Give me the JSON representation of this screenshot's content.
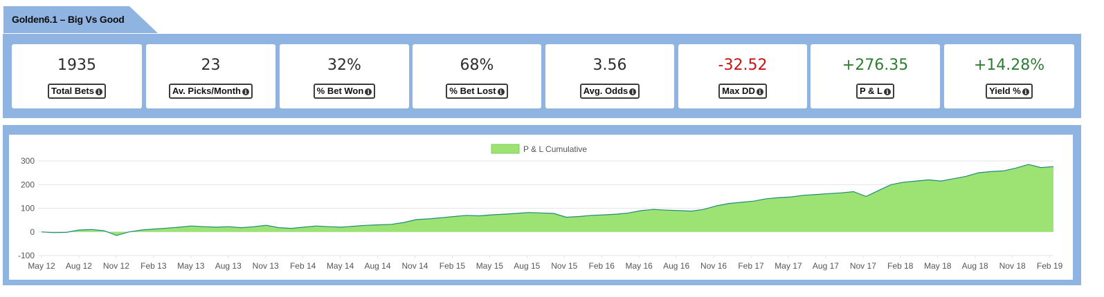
{
  "header": {
    "title": "Golden6.1 – Big Vs Good"
  },
  "stats": [
    {
      "value": "1935",
      "label": "Total Bets",
      "tone": "neutral"
    },
    {
      "value": "23",
      "label": "Av. Picks/Month",
      "tone": "neutral"
    },
    {
      "value": "32%",
      "label": "% Bet Won",
      "tone": "neutral"
    },
    {
      "value": "68%",
      "label": "% Bet Lost",
      "tone": "neutral"
    },
    {
      "value": "3.56",
      "label": "Avg. Odds",
      "tone": "neutral"
    },
    {
      "value": "-32.52",
      "label": "Max DD",
      "tone": "negative"
    },
    {
      "value": "+276.35",
      "label": "P & L",
      "tone": "positive"
    },
    {
      "value": "+14.28%",
      "label": "Yield %",
      "tone": "positive"
    }
  ],
  "info_icon_glyph": "i",
  "colors": {
    "panel": "#8fb4e1",
    "area_fill": "#9de374",
    "area_line": "#1f8a7a",
    "negative": "#cc1111",
    "positive": "#2f7d32"
  },
  "chart_data": {
    "type": "area",
    "legend": {
      "label": "P & L Cumulative",
      "position": "top-center"
    },
    "ylim": [
      -100,
      300
    ],
    "yticks": [
      300,
      200,
      100,
      0,
      -100
    ],
    "x_tick_labels": [
      "May 12",
      "Aug 12",
      "Nov 12",
      "Feb 13",
      "May 13",
      "Aug 13",
      "Nov 13",
      "Feb 14",
      "May 14",
      "Aug 14",
      "Nov 14",
      "Feb 15",
      "May 15",
      "Aug 15",
      "Nov 15",
      "Feb 16",
      "May 16",
      "Aug 16",
      "Nov 16",
      "Feb 17",
      "May 17",
      "Aug 17",
      "Nov 17",
      "Feb 18",
      "May 18",
      "Aug 18",
      "Nov 18",
      "Feb 19"
    ],
    "grid": true,
    "series": [
      {
        "name": "P & L Cumulative",
        "x": [
          "2012-05",
          "2012-06",
          "2012-07",
          "2012-08",
          "2012-09",
          "2012-10",
          "2012-11",
          "2012-12",
          "2013-01",
          "2013-02",
          "2013-03",
          "2013-04",
          "2013-05",
          "2013-06",
          "2013-07",
          "2013-08",
          "2013-09",
          "2013-10",
          "2013-11",
          "2013-12",
          "2014-01",
          "2014-02",
          "2014-03",
          "2014-04",
          "2014-05",
          "2014-06",
          "2014-07",
          "2014-08",
          "2014-09",
          "2014-10",
          "2014-11",
          "2014-12",
          "2015-01",
          "2015-02",
          "2015-03",
          "2015-04",
          "2015-05",
          "2015-06",
          "2015-07",
          "2015-08",
          "2015-09",
          "2015-10",
          "2015-11",
          "2015-12",
          "2016-01",
          "2016-02",
          "2016-03",
          "2016-04",
          "2016-05",
          "2016-06",
          "2016-07",
          "2016-08",
          "2016-09",
          "2016-10",
          "2016-11",
          "2016-12",
          "2017-01",
          "2017-02",
          "2017-03",
          "2017-04",
          "2017-05",
          "2017-06",
          "2017-07",
          "2017-08",
          "2017-09",
          "2017-10",
          "2017-11",
          "2017-12",
          "2018-01",
          "2018-02",
          "2018-03",
          "2018-04",
          "2018-05",
          "2018-06",
          "2018-07",
          "2018-08",
          "2018-09",
          "2018-10",
          "2018-11",
          "2018-12",
          "2019-01",
          "2019-02"
        ],
        "values": [
          0,
          -3,
          -2,
          8,
          10,
          5,
          -15,
          0,
          8,
          12,
          16,
          20,
          25,
          22,
          20,
          22,
          18,
          22,
          28,
          18,
          15,
          20,
          25,
          22,
          20,
          24,
          28,
          30,
          32,
          40,
          52,
          55,
          60,
          65,
          70,
          68,
          72,
          75,
          78,
          82,
          80,
          78,
          62,
          65,
          70,
          72,
          75,
          80,
          90,
          95,
          92,
          90,
          88,
          95,
          110,
          120,
          125,
          130,
          140,
          145,
          148,
          155,
          158,
          162,
          165,
          170,
          150,
          175,
          200,
          210,
          215,
          220,
          215,
          225,
          235,
          250,
          255,
          258,
          270,
          285,
          272,
          276
        ]
      }
    ]
  }
}
